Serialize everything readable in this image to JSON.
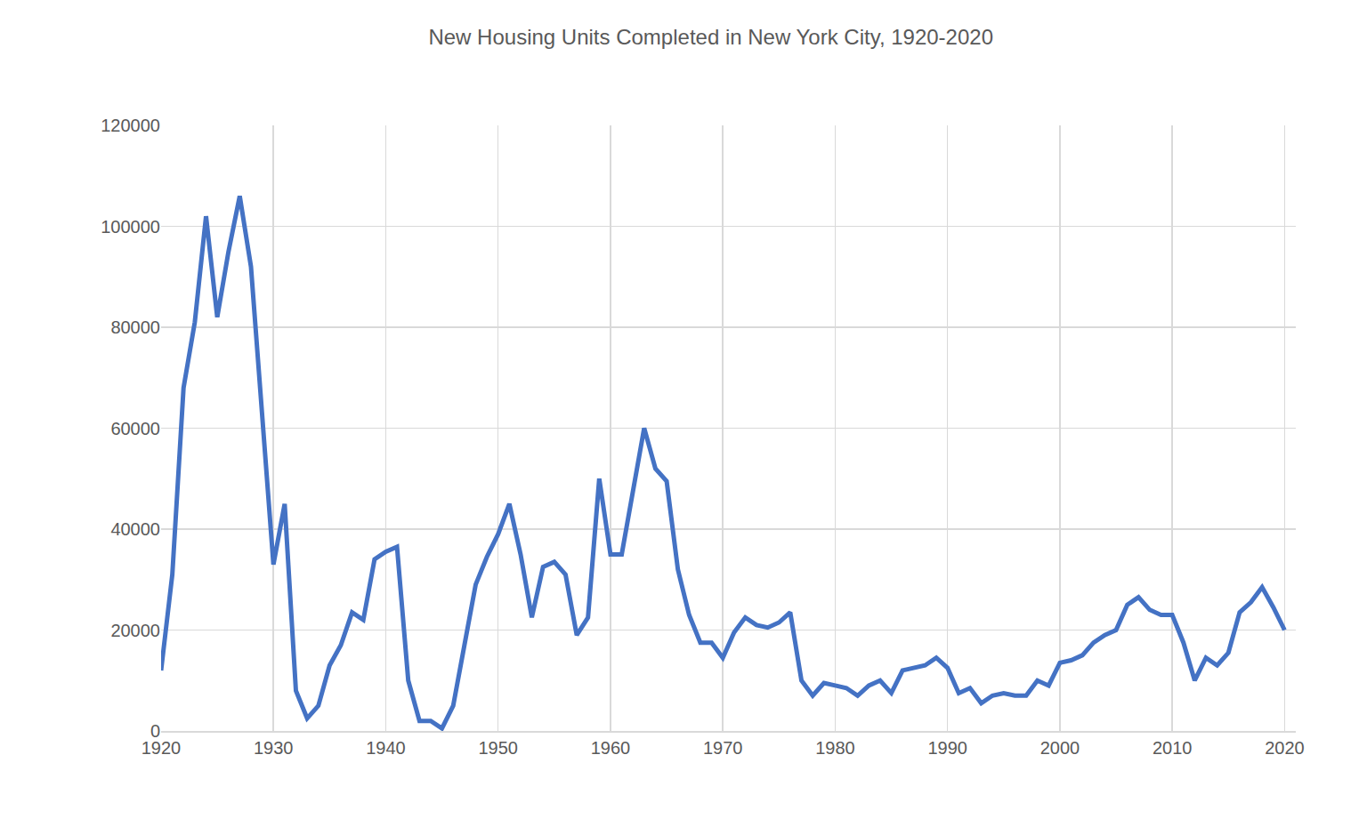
{
  "chart_data": {
    "type": "line",
    "title": "New Housing Units Completed in New York City, 1920-2020",
    "x": [
      1920,
      1921,
      1922,
      1923,
      1924,
      1925,
      1926,
      1927,
      1928,
      1929,
      1930,
      1931,
      1932,
      1933,
      1934,
      1935,
      1936,
      1937,
      1938,
      1939,
      1940,
      1941,
      1942,
      1943,
      1944,
      1945,
      1946,
      1947,
      1948,
      1949,
      1950,
      1951,
      1952,
      1953,
      1954,
      1955,
      1956,
      1957,
      1958,
      1959,
      1960,
      1961,
      1962,
      1963,
      1964,
      1965,
      1966,
      1967,
      1968,
      1969,
      1970,
      1971,
      1972,
      1973,
      1974,
      1975,
      1976,
      1977,
      1978,
      1979,
      1980,
      1981,
      1982,
      1983,
      1984,
      1985,
      1986,
      1987,
      1988,
      1989,
      1990,
      1991,
      1992,
      1993,
      1994,
      1995,
      1996,
      1997,
      1998,
      1999,
      2000,
      2001,
      2002,
      2003,
      2004,
      2005,
      2006,
      2007,
      2008,
      2009,
      2010,
      2011,
      2012,
      2013,
      2014,
      2015,
      2016,
      2017,
      2018,
      2019,
      2020
    ],
    "values": [
      12000,
      31000,
      68000,
      81000,
      102000,
      82000,
      95000,
      106000,
      92000,
      62000,
      33000,
      45000,
      8000,
      2500,
      5000,
      13000,
      17000,
      23500,
      22000,
      34000,
      35500,
      36500,
      10000,
      2000,
      2000,
      500,
      5000,
      17000,
      29000,
      34500,
      39000,
      45000,
      35000,
      22500,
      32500,
      33500,
      31000,
      19000,
      22500,
      50000,
      35000,
      35000,
      47000,
      60000,
      52000,
      49500,
      32000,
      23000,
      17500,
      17500,
      14500,
      19500,
      22500,
      21000,
      20500,
      21500,
      23500,
      10000,
      7000,
      9500,
      9000,
      8500,
      7000,
      9000,
      10000,
      7500,
      12000,
      12500,
      13000,
      14500,
      12500,
      7500,
      8500,
      5500,
      7000,
      7500,
      7000,
      7000,
      10000,
      9000,
      13500,
      14000,
      15000,
      17500,
      19000,
      20000,
      25000,
      26500,
      24000,
      23000,
      23000,
      17500,
      10000,
      14500,
      13000,
      15500,
      23500,
      25500,
      28500,
      24500,
      20000
    ],
    "color": "#4472c4",
    "xlim": [
      1920,
      2021
    ],
    "xticks": [
      1920,
      1930,
      1940,
      1950,
      1960,
      1970,
      1980,
      1990,
      2000,
      2010,
      2020
    ],
    "ylim": [
      0,
      120000
    ],
    "yticks": [
      0,
      20000,
      40000,
      60000,
      80000,
      100000,
      120000
    ],
    "grid": true
  }
}
